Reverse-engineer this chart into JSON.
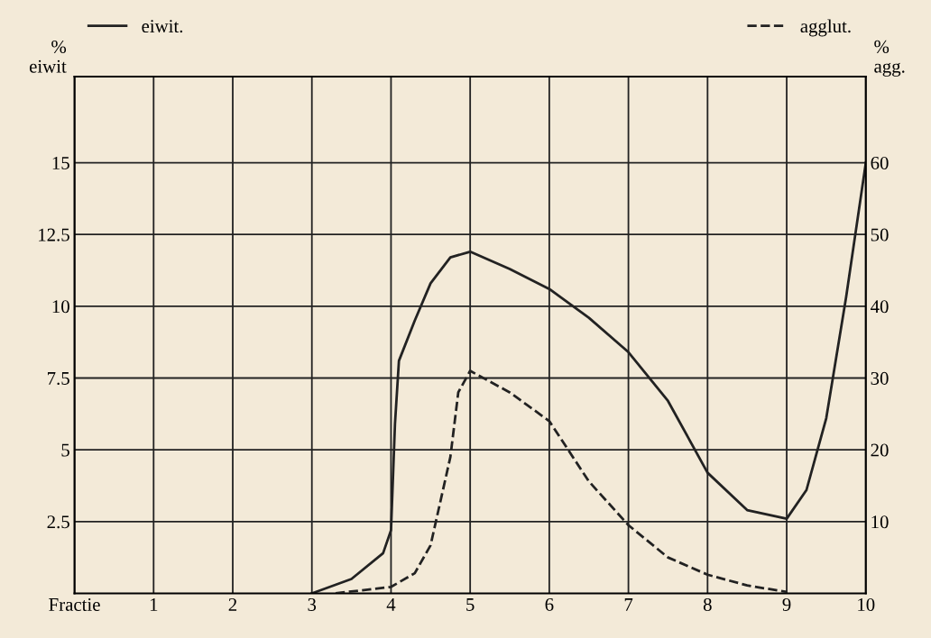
{
  "chart_data": {
    "type": "line",
    "ylabel": "%\neiwit",
    "y2label": "%\nagg.",
    "xlim": [
      0,
      10
    ],
    "xticks": [
      {
        "value": 0,
        "label": "Fractie"
      },
      1,
      2,
      3,
      4,
      5,
      6,
      7,
      8,
      9,
      10
    ],
    "ylim": [
      0,
      18
    ],
    "yticks": [
      2.5,
      5,
      7.5,
      10,
      12.5,
      15
    ],
    "y2lim": [
      0,
      72
    ],
    "y2ticks": [
      10,
      20,
      30,
      40,
      50,
      60
    ],
    "grid": true,
    "legend": "top",
    "marker": "none",
    "series": [
      {
        "name": "eiwit.",
        "color": "#222222",
        "line_style": "solid",
        "x": [
          3,
          3.5,
          3.9,
          4.0,
          4.05,
          4.1,
          4.3,
          4.5,
          4.75,
          5.0,
          5.5,
          6,
          6.5,
          7,
          7.5,
          8,
          8.5,
          9,
          9.25,
          9.5,
          9.75,
          10
        ],
        "values": [
          0,
          0.5,
          1.4,
          2.2,
          5.9,
          8.1,
          9.5,
          10.8,
          11.7,
          11.9,
          11.3,
          10.6,
          9.6,
          8.4,
          6.7,
          4.2,
          2.9,
          2.6,
          3.6,
          6.1,
          10.3,
          15
        ]
      },
      {
        "name": "agglut.",
        "color": "#222222",
        "line_style": "dashed",
        "axis": "y2",
        "x": [
          3.3,
          4,
          4.3,
          4.5,
          4.75,
          4.85,
          5.0,
          5.5,
          6,
          6.5,
          7,
          7.5,
          8,
          8.5,
          9
        ],
        "values": [
          0,
          0.9,
          2.8,
          6.7,
          19,
          28,
          31,
          28,
          24,
          15.6,
          9.5,
          5,
          2.6,
          1.1,
          0.2
        ]
      }
    ]
  }
}
